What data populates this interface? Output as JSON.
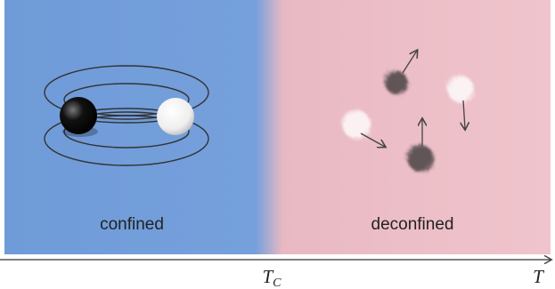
{
  "regions": [
    {
      "label": "confined"
    },
    {
      "label": "deconfined"
    }
  ],
  "axis": {
    "critical_label": "T",
    "critical_subscript": "C",
    "label": "T"
  }
}
